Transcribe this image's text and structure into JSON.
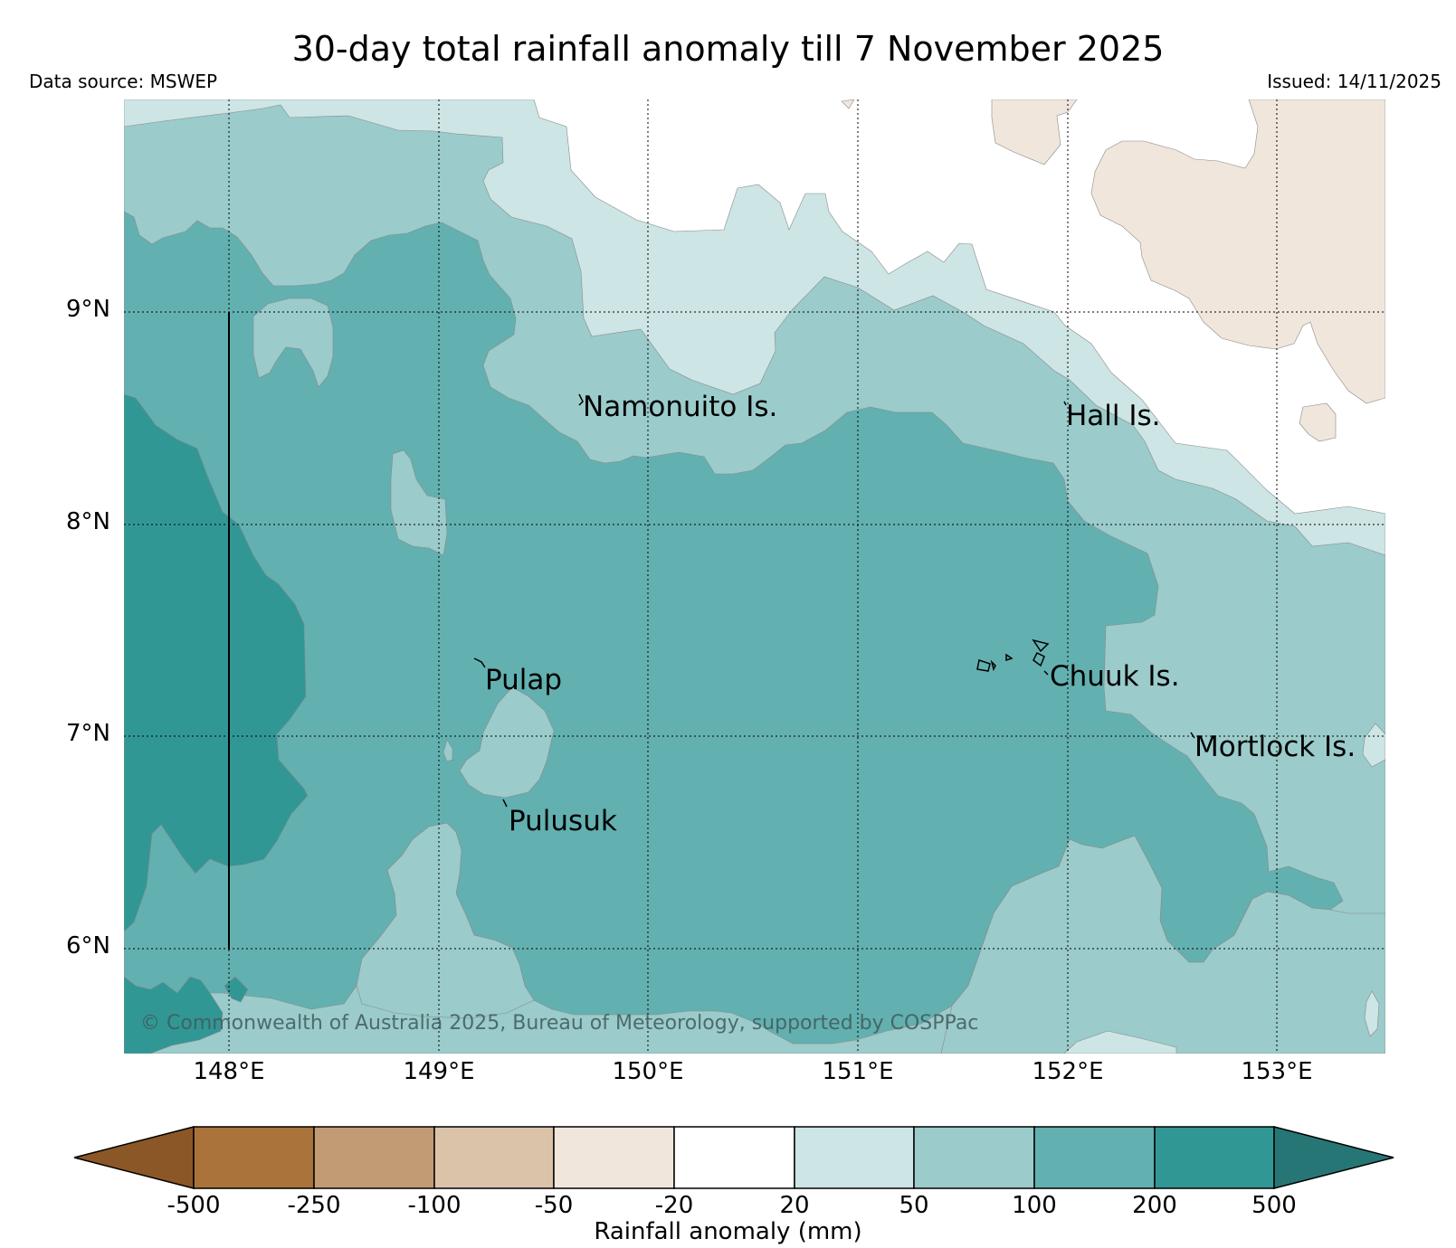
{
  "title": "30-day total rainfall anomaly till 7 November 2025",
  "data_source": "Data source: MSWEP",
  "issued": "Issued: 14/11/2025",
  "copyright": "© Commonwealth of Australia 2025, Bureau of Meteorology, supported by COSPPac",
  "axes": {
    "lat_labels": [
      "9°N",
      "8°N",
      "7°N",
      "6°N"
    ],
    "lon_labels": [
      "148°E",
      "149°E",
      "150°E",
      "151°E",
      "152°E",
      "153°E"
    ]
  },
  "places": [
    "Namonuito Is.",
    "Hall Is.",
    "Pulap",
    "Chuuk Is.",
    "Mortlock Is.",
    "Pulusuk"
  ],
  "legend": {
    "title": "Rainfall anomaly (mm)",
    "tick_labels": [
      "-500",
      "-250",
      "-100",
      "-50",
      "-20",
      "20",
      "50",
      "100",
      "200",
      "500"
    ],
    "colors": [
      "#8c5726",
      "#a9733b",
      "#c29b74",
      "#dbc3aa",
      "#f0e6dc",
      "#ffffff",
      "#cde5e4",
      "#9bcbcb",
      "#63b0b0",
      "#319795",
      "#277676"
    ]
  },
  "map_colors": {
    "white": "#ffffff",
    "tan": "#f0e6dc",
    "light": "#cde5e4",
    "mid": "#9bcbcb",
    "deep": "#63b0b0",
    "darkest": "#319795"
  }
}
